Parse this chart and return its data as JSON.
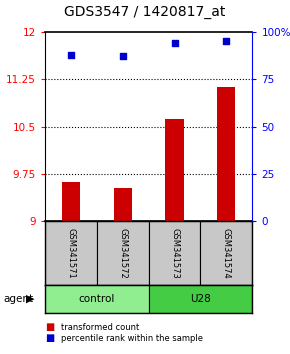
{
  "title": "GDS3547 / 1420817_at",
  "samples": [
    "GSM341571",
    "GSM341572",
    "GSM341573",
    "GSM341574"
  ],
  "bar_values": [
    9.62,
    9.52,
    10.62,
    11.12
  ],
  "percentile_values": [
    88,
    87,
    94,
    95
  ],
  "ylim_left": [
    9.0,
    12.0
  ],
  "ylim_right": [
    0,
    100
  ],
  "yticks_left": [
    9.0,
    9.75,
    10.5,
    11.25,
    12.0
  ],
  "yticks_right": [
    0,
    25,
    50,
    75,
    100
  ],
  "ytick_labels_left": [
    "9",
    "9.75",
    "10.5",
    "11.25",
    "12"
  ],
  "ytick_labels_right": [
    "0",
    "25",
    "50",
    "75",
    "100%"
  ],
  "bar_color": "#cc0000",
  "dot_color": "#0000cc",
  "groups": [
    {
      "label": "control",
      "samples": [
        0,
        1
      ],
      "color": "#90ee90"
    },
    {
      "label": "U28",
      "samples": [
        2,
        3
      ],
      "color": "#44cc44"
    }
  ],
  "group_row_label": "agent",
  "sample_box_color": "#c8c8c8",
  "legend_bar_label": "transformed count",
  "legend_dot_label": "percentile rank within the sample",
  "title_fontsize": 10,
  "tick_fontsize": 7.5,
  "label_fontsize": 7.5
}
